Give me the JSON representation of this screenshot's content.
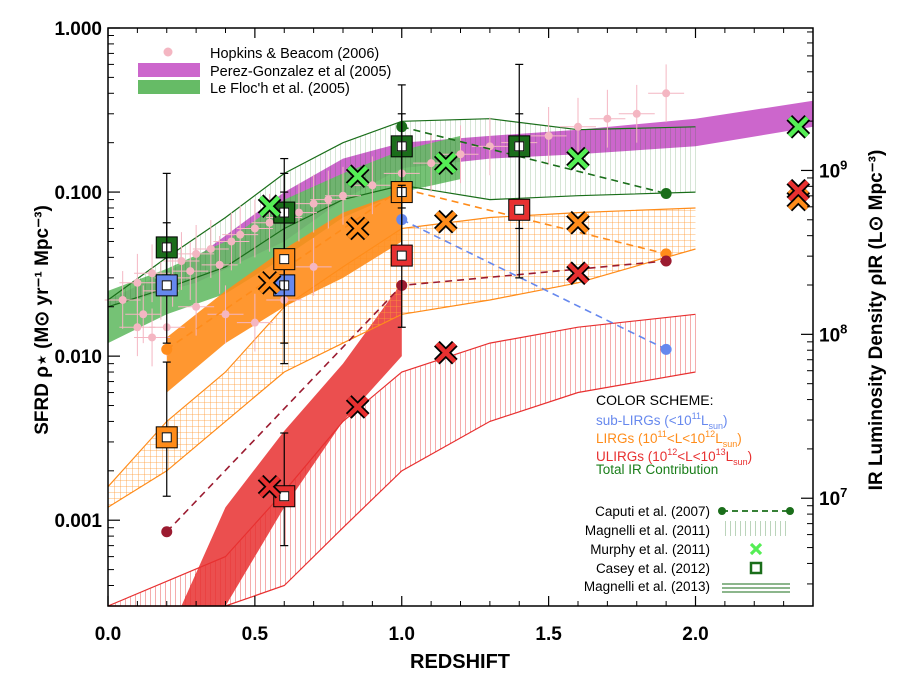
{
  "chart_data": {
    "type": "scatter",
    "title": "",
    "xlabel": "REDSHIFT",
    "ylabel": "SFRD ρ⋆ (M⊙ yr⁻¹ Mpc⁻³)",
    "y2label": "IR Luminosity Density ρIR (L⊙ Mpc⁻³)",
    "xlim": [
      0.0,
      2.4
    ],
    "ylim": [
      0.0003,
      1.0
    ],
    "y2lim": [
      2200000.0,
      7400000000.0
    ],
    "xticks": [
      0.0,
      0.5,
      1.0,
      1.5,
      2.0
    ],
    "xtick_labels": [
      "0.0",
      "0.5",
      "1.0",
      "1.5",
      "2.0"
    ],
    "yticks": [
      0.001,
      0.01,
      0.1,
      1.0
    ],
    "ytick_labels": [
      "0.001",
      "0.010",
      "0.100",
      "1.000"
    ],
    "y2ticks": [
      10000000.0,
      100000000.0,
      1000000000.0
    ],
    "y2tick_labels": [
      {
        "base": "10",
        "exp": "7"
      },
      {
        "base": "10",
        "exp": "8"
      },
      {
        "base": "10",
        "exp": "9"
      }
    ],
    "colors": {
      "pink": "#f4b6c2",
      "magenta": "#cc66cc",
      "green_band": "#66bb66",
      "blue": "#6688ee",
      "orange": "#ff8c1a",
      "red": "#e83030",
      "dark_red": "#9b1b30",
      "dark_green": "#1a6e1a",
      "light_green": "#55ee55"
    },
    "legend_top": [
      {
        "label": "Hopkins & Beacom (2006)"
      },
      {
        "label": "Perez-Gonzalez et al (2005)"
      },
      {
        "label": "Le Floc'h et al. (2005)"
      }
    ],
    "color_scheme": {
      "title": "COLOR SCHEME:",
      "sub_lirgs": {
        "main": "sub-LIRGs (<10",
        "sup": "11",
        "after": "L",
        "sub": "sun",
        "close": ")"
      },
      "lirgs": {
        "main": "LIRGs (10",
        "sup1": "11",
        "mid": "<L<10",
        "sup2": "12",
        "after": "L",
        "sub": "sun",
        "close": ")"
      },
      "ulirgs": {
        "main": "ULIRGs (10",
        "sup1": "12",
        "mid": "<L<10",
        "sup2": "13",
        "after": "L",
        "sub": "sun",
        "close": ")"
      },
      "total": "Total IR Contribution"
    },
    "legend_bottom": [
      {
        "label": "Caputi et al. (2007)"
      },
      {
        "label": "Magnelli et al. (2011)"
      },
      {
        "label": "Murphy et al. (2011)"
      },
      {
        "label": "Casey et al. (2012)"
      },
      {
        "label": "Magnelli et al. (2013)"
      }
    ],
    "series": [
      {
        "name": "Hopkins & Beacom (2006)",
        "kind": "pink_points",
        "points": [
          [
            0.05,
            0.022
          ],
          [
            0.1,
            0.028
          ],
          [
            0.12,
            0.018
          ],
          [
            0.15,
            0.032
          ],
          [
            0.18,
            0.025
          ],
          [
            0.22,
            0.03
          ],
          [
            0.25,
            0.038
          ],
          [
            0.28,
            0.033
          ],
          [
            0.3,
            0.042
          ],
          [
            0.35,
            0.045
          ],
          [
            0.38,
            0.036
          ],
          [
            0.42,
            0.05
          ],
          [
            0.45,
            0.055
          ],
          [
            0.5,
            0.06
          ],
          [
            0.55,
            0.065
          ],
          [
            0.6,
            0.07
          ],
          [
            0.65,
            0.075
          ],
          [
            0.7,
            0.085
          ],
          [
            0.75,
            0.09
          ],
          [
            0.8,
            0.095
          ],
          [
            0.9,
            0.11
          ],
          [
            1.0,
            0.13
          ],
          [
            1.1,
            0.15
          ],
          [
            1.2,
            0.17
          ],
          [
            1.3,
            0.19
          ],
          [
            1.4,
            0.2
          ],
          [
            1.5,
            0.22
          ],
          [
            1.6,
            0.25
          ],
          [
            1.7,
            0.28
          ],
          [
            1.8,
            0.3
          ],
          [
            1.9,
            0.4
          ],
          [
            0.4,
            0.018
          ],
          [
            0.5,
            0.016
          ],
          [
            0.6,
            0.022
          ],
          [
            0.3,
            0.02
          ],
          [
            0.2,
            0.015
          ],
          [
            0.7,
            0.035
          ],
          [
            0.1,
            0.015
          ],
          [
            0.15,
            0.013
          ]
        ]
      },
      {
        "name": "Perez-Gonzalez et al (2005)",
        "kind": "band",
        "x": [
          0.0,
          0.3,
          0.6,
          0.8,
          1.0,
          1.3,
          1.6,
          2.0,
          2.4
        ],
        "lower": [
          0.02,
          0.028,
          0.05,
          0.09,
          0.14,
          0.16,
          0.17,
          0.19,
          0.25
        ],
        "upper": [
          0.022,
          0.04,
          0.1,
          0.16,
          0.2,
          0.22,
          0.24,
          0.28,
          0.36
        ]
      },
      {
        "name": "Le Floc'h et al. (2005)",
        "kind": "band",
        "x": [
          0.0,
          0.2,
          0.4,
          0.6,
          0.8,
          1.0,
          1.2
        ],
        "lower": [
          0.012,
          0.018,
          0.024,
          0.04,
          0.07,
          0.1,
          0.12
        ],
        "upper": [
          0.025,
          0.034,
          0.05,
          0.09,
          0.13,
          0.18,
          0.22
        ]
      },
      {
        "name": "Magnelli et al. (2013) Total",
        "kind": "line_band",
        "x": [
          0.0,
          0.2,
          0.4,
          0.6,
          0.8,
          1.0,
          1.3,
          1.6,
          2.0
        ],
        "lower": [
          0.02,
          0.026,
          0.035,
          0.06,
          0.09,
          0.11,
          0.09,
          0.095,
          0.1
        ],
        "upper": [
          0.022,
          0.04,
          0.07,
          0.13,
          0.2,
          0.27,
          0.28,
          0.24,
          0.25
        ]
      },
      {
        "name": "Magnelli et al. (2011) LIRGs",
        "kind": "hatched_band",
        "x": [
          0.0,
          0.2,
          0.4,
          0.6,
          0.8,
          1.0,
          1.3,
          1.6,
          2.0
        ],
        "lower": [
          0.0012,
          0.002,
          0.004,
          0.008,
          0.012,
          0.018,
          0.022,
          0.028,
          0.045
        ],
        "upper": [
          0.0016,
          0.004,
          0.008,
          0.02,
          0.035,
          0.06,
          0.07,
          0.075,
          0.08
        ]
      },
      {
        "name": "Magnelli et al. (2013) LIRGs",
        "kind": "filled_band",
        "x": [
          0.2,
          0.4,
          0.6,
          0.8,
          1.0
        ],
        "lower": [
          0.006,
          0.012,
          0.02,
          0.03,
          0.05
        ],
        "upper": [
          0.013,
          0.025,
          0.045,
          0.075,
          0.1
        ]
      },
      {
        "name": "Magnelli et al. (2011) ULIRGs",
        "kind": "hatched_band",
        "x": [
          0.0,
          0.4,
          0.6,
          0.8,
          1.0,
          1.3,
          1.6,
          2.0
        ],
        "lower": [
          0.0003,
          0.0003,
          0.0004,
          0.0009,
          0.002,
          0.004,
          0.006,
          0.008
        ],
        "upper": [
          0.0003,
          0.0006,
          0.0015,
          0.004,
          0.008,
          0.012,
          0.015,
          0.018
        ]
      },
      {
        "name": "Magnelli et al. (2013) ULIRGs",
        "kind": "filled_band",
        "x": [
          0.25,
          0.4,
          0.6,
          0.8,
          1.0
        ],
        "lower": [
          0.0003,
          0.0003,
          0.0012,
          0.004,
          0.01
        ],
        "upper": [
          0.0003,
          0.0012,
          0.0035,
          0.009,
          0.028
        ]
      },
      {
        "name": "Caputi et al. (2007) Total",
        "kind": "dashed_points",
        "color": "dark_green",
        "points": [
          [
            1.0,
            0.25
          ],
          [
            1.9,
            0.098
          ]
        ]
      },
      {
        "name": "Caputi et al. (2007) sub-LIRGs",
        "kind": "dashed_points",
        "color": "blue",
        "points": [
          [
            1.0,
            0.068
          ],
          [
            1.9,
            0.011
          ]
        ]
      },
      {
        "name": "Caputi et al. (2007) LIRGs",
        "kind": "dashed_points",
        "color": "orange",
        "points": [
          [
            0.2,
            0.011
          ],
          [
            1.0,
            0.105
          ],
          [
            1.9,
            0.042
          ]
        ]
      },
      {
        "name": "Caputi et al. (2007) ULIRGs",
        "kind": "dashed_points",
        "color": "dark_red",
        "points": [
          [
            0.2,
            0.00085
          ],
          [
            1.0,
            0.027
          ],
          [
            1.9,
            0.038
          ]
        ]
      },
      {
        "name": "Casey et al. (2012) Total",
        "kind": "squares",
        "color": "dark_green",
        "points": [
          [
            0.2,
            0.046,
            0.065,
            0.028
          ],
          [
            0.6,
            0.075,
            0.16,
            0.03
          ],
          [
            1.0,
            0.19,
            0.45,
            0.08
          ],
          [
            1.4,
            0.19,
            0.6,
            0.06
          ]
        ]
      },
      {
        "name": "Casey et al. (2012) sub-LIRGs",
        "kind": "squares",
        "color": "blue",
        "points": [
          [
            0.2,
            0.027,
            0.13,
            0.012
          ],
          [
            0.6,
            0.027,
            0.1,
            0.009
          ]
        ]
      },
      {
        "name": "Casey et al. (2012) LIRGs",
        "kind": "squares",
        "color": "orange",
        "points": [
          [
            0.2,
            0.0032,
            0.0092,
            0.0014
          ],
          [
            0.6,
            0.039,
            0.13,
            0.012
          ],
          [
            1.0,
            0.1,
            0.3,
            0.04
          ]
        ]
      },
      {
        "name": "Casey et al. (2012) ULIRGs",
        "kind": "squares",
        "color": "red",
        "points": [
          [
            0.6,
            0.0014,
            0.0034,
            0.0007
          ],
          [
            1.0,
            0.041,
            0.11,
            0.015
          ],
          [
            1.4,
            0.078,
            0.3,
            0.03
          ]
        ]
      },
      {
        "name": "Murphy et al. (2011) Total",
        "kind": "crosses",
        "color": "light_green",
        "points": [
          [
            0.55,
            0.082
          ],
          [
            0.85,
            0.125
          ],
          [
            1.15,
            0.15
          ],
          [
            1.6,
            0.16
          ],
          [
            2.35,
            0.25
          ]
        ]
      },
      {
        "name": "Murphy et al. (2011) LIRGs",
        "kind": "crosses",
        "color": "orange",
        "points": [
          [
            0.55,
            0.028
          ],
          [
            0.85,
            0.06
          ],
          [
            1.15,
            0.066
          ],
          [
            1.6,
            0.065
          ],
          [
            2.35,
            0.09
          ]
        ]
      },
      {
        "name": "Murphy et al. (2011) ULIRGs",
        "kind": "crosses",
        "color": "red",
        "points": [
          [
            0.55,
            0.0016
          ],
          [
            0.85,
            0.0049
          ],
          [
            1.15,
            0.0105
          ],
          [
            1.6,
            0.032
          ],
          [
            2.35,
            0.102
          ]
        ]
      }
    ]
  }
}
